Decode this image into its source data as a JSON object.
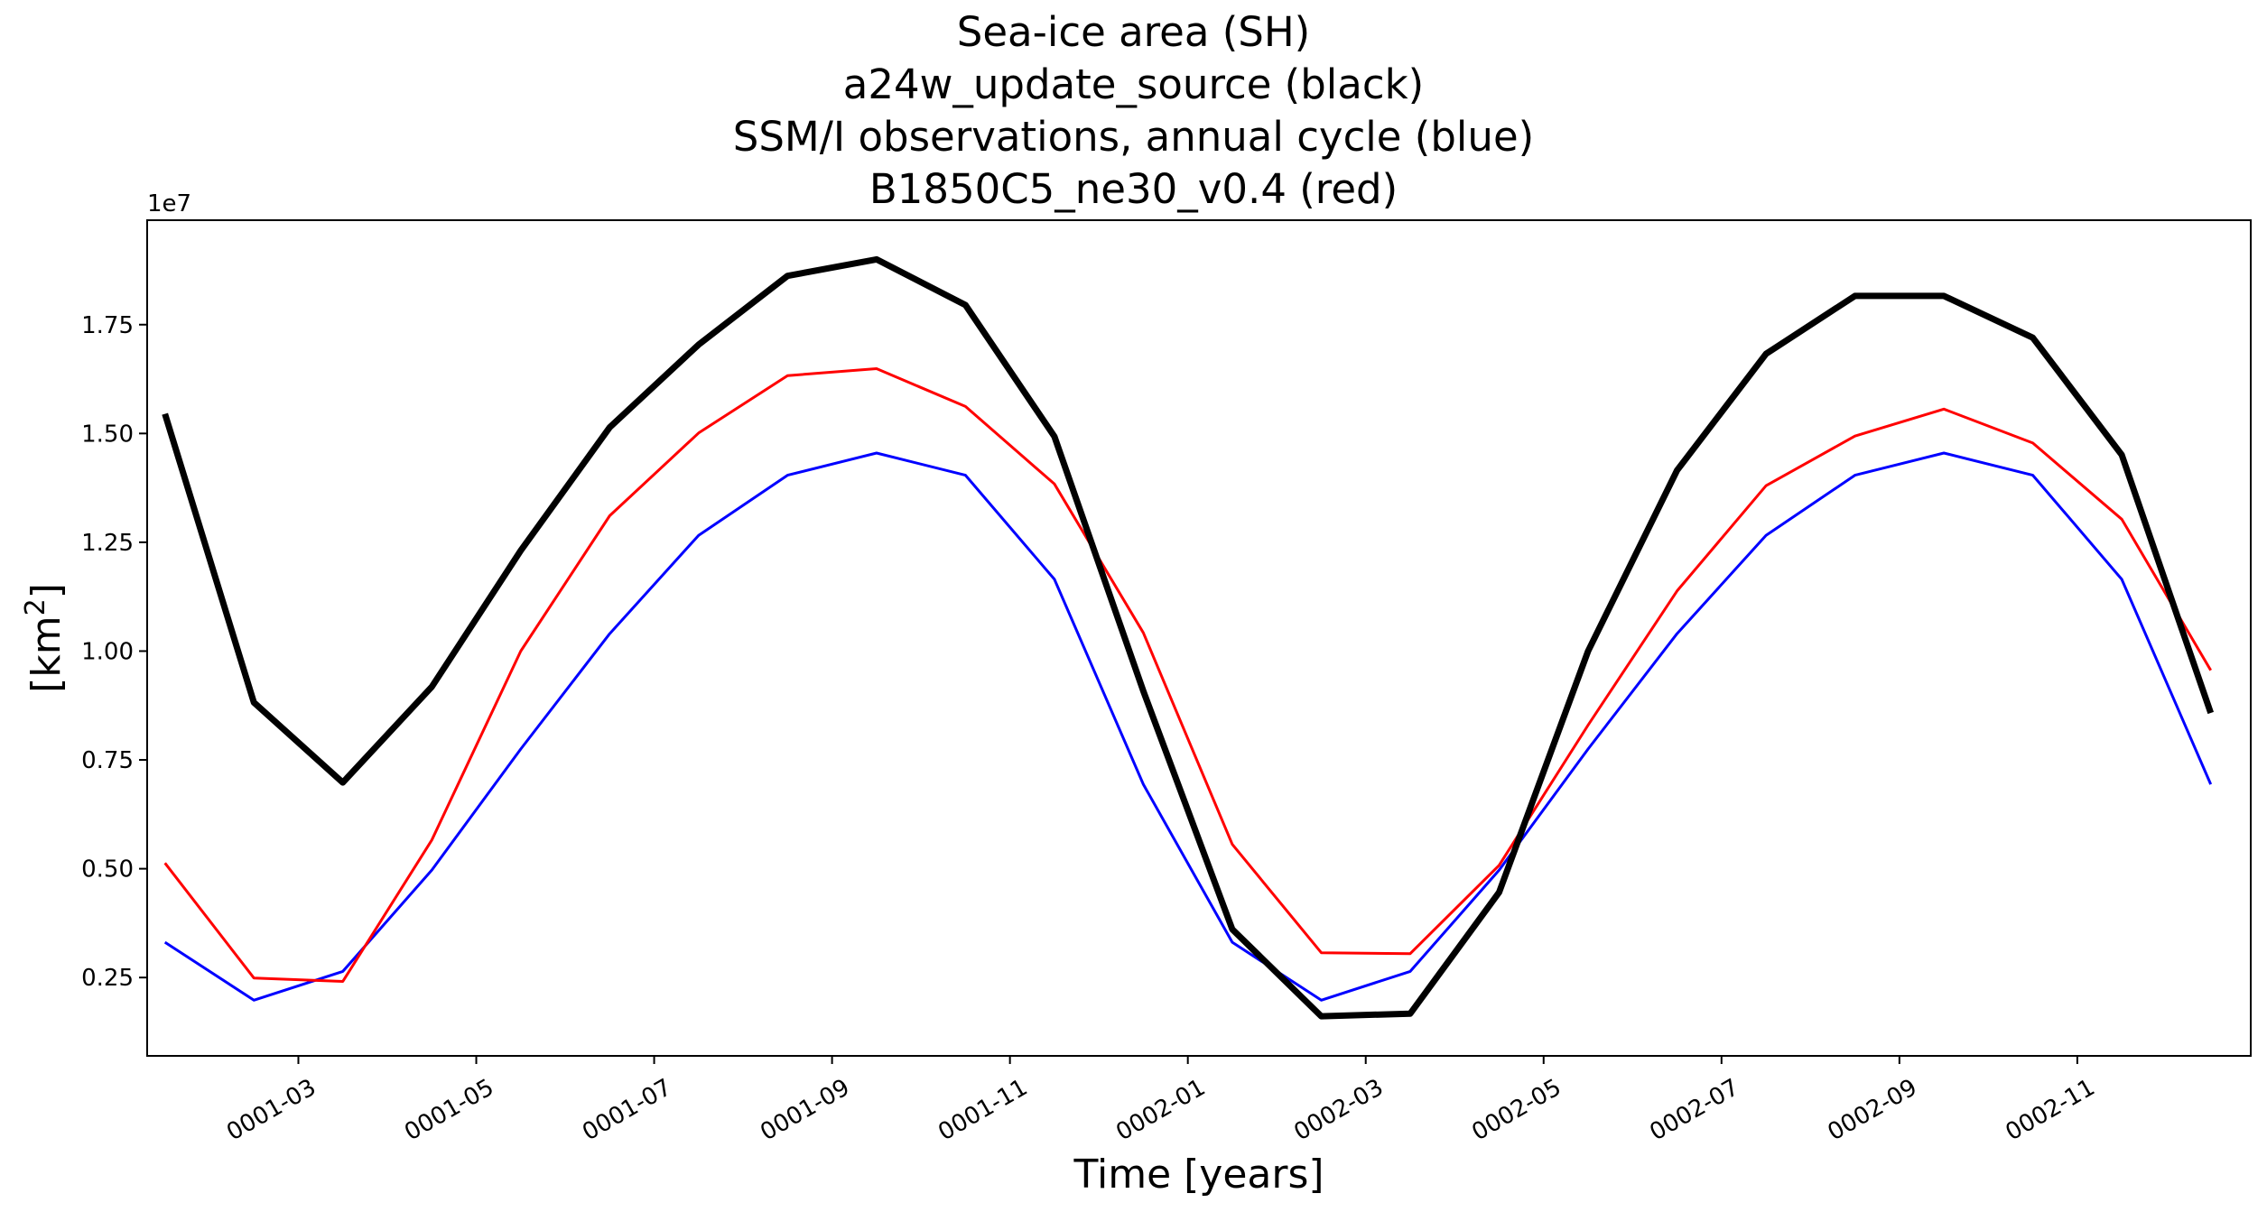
{
  "chart_data": {
    "type": "line",
    "title_lines": [
      "Sea-ice area (SH)",
      "a24w_update_source (black)",
      "SSM/I observations, annual cycle (blue)",
      "B1850C5_ne30_v0.4 (red)"
    ],
    "xlabel": "Time [years]",
    "ylabel_base": "[km",
    "ylabel_sup": "2",
    "ylabel_end": "]",
    "y_offset_text": "1e7",
    "x_months": [
      1,
      2,
      3,
      4,
      5,
      6,
      7,
      8,
      9,
      10,
      11,
      12,
      13,
      14,
      15,
      16,
      17,
      18,
      19,
      20,
      21,
      22,
      23,
      24
    ],
    "xlim_months": [
      0.8,
      24.45
    ],
    "xticks": [
      {
        "month": 2.5,
        "label": "0001-03"
      },
      {
        "month": 4.5,
        "label": "0001-05"
      },
      {
        "month": 6.5,
        "label": "0001-07"
      },
      {
        "month": 8.5,
        "label": "0001-09"
      },
      {
        "month": 10.5,
        "label": "0001-11"
      },
      {
        "month": 12.5,
        "label": "0002-01"
      },
      {
        "month": 14.5,
        "label": "0002-03"
      },
      {
        "month": 16.5,
        "label": "0002-05"
      },
      {
        "month": 18.5,
        "label": "0002-07"
      },
      {
        "month": 20.5,
        "label": "0002-09"
      },
      {
        "month": 22.5,
        "label": "0002-11"
      }
    ],
    "ylim": [
      0.07,
      1.99
    ],
    "yticks": [
      0.25,
      0.5,
      0.75,
      1.0,
      1.25,
      1.5,
      1.75
    ],
    "ytick_labels": [
      "0.25",
      "0.50",
      "0.75",
      "1.00",
      "1.25",
      "1.50",
      "1.75"
    ],
    "grid": false,
    "series": [
      {
        "color": "#000000",
        "values": [
          1.545,
          0.882,
          0.698,
          0.918,
          1.231,
          1.514,
          1.704,
          1.862,
          1.9,
          1.795,
          1.493,
          0.908,
          0.361,
          0.161,
          0.167,
          0.446,
          1.0,
          1.415,
          1.683,
          1.816,
          1.816,
          1.72,
          1.451,
          0.858
        ]
      },
      {
        "color": "#ff0000",
        "values": [
          0.513,
          0.249,
          0.241,
          0.566,
          1.0,
          1.311,
          1.501,
          1.633,
          1.649,
          1.562,
          1.384,
          1.042,
          0.556,
          0.307,
          0.305,
          0.508,
          0.83,
          1.138,
          1.38,
          1.494,
          1.556,
          1.478,
          1.303,
          0.956
        ]
      },
      {
        "color": "#0000ff",
        "values": [
          0.331,
          0.198,
          0.264,
          0.497,
          0.775,
          1.04,
          1.266,
          1.404,
          1.455,
          1.404,
          1.165,
          0.694,
          0.331,
          0.198,
          0.264,
          0.497,
          0.775,
          1.04,
          1.266,
          1.404,
          1.455,
          1.404,
          1.165,
          0.694
        ]
      }
    ]
  }
}
